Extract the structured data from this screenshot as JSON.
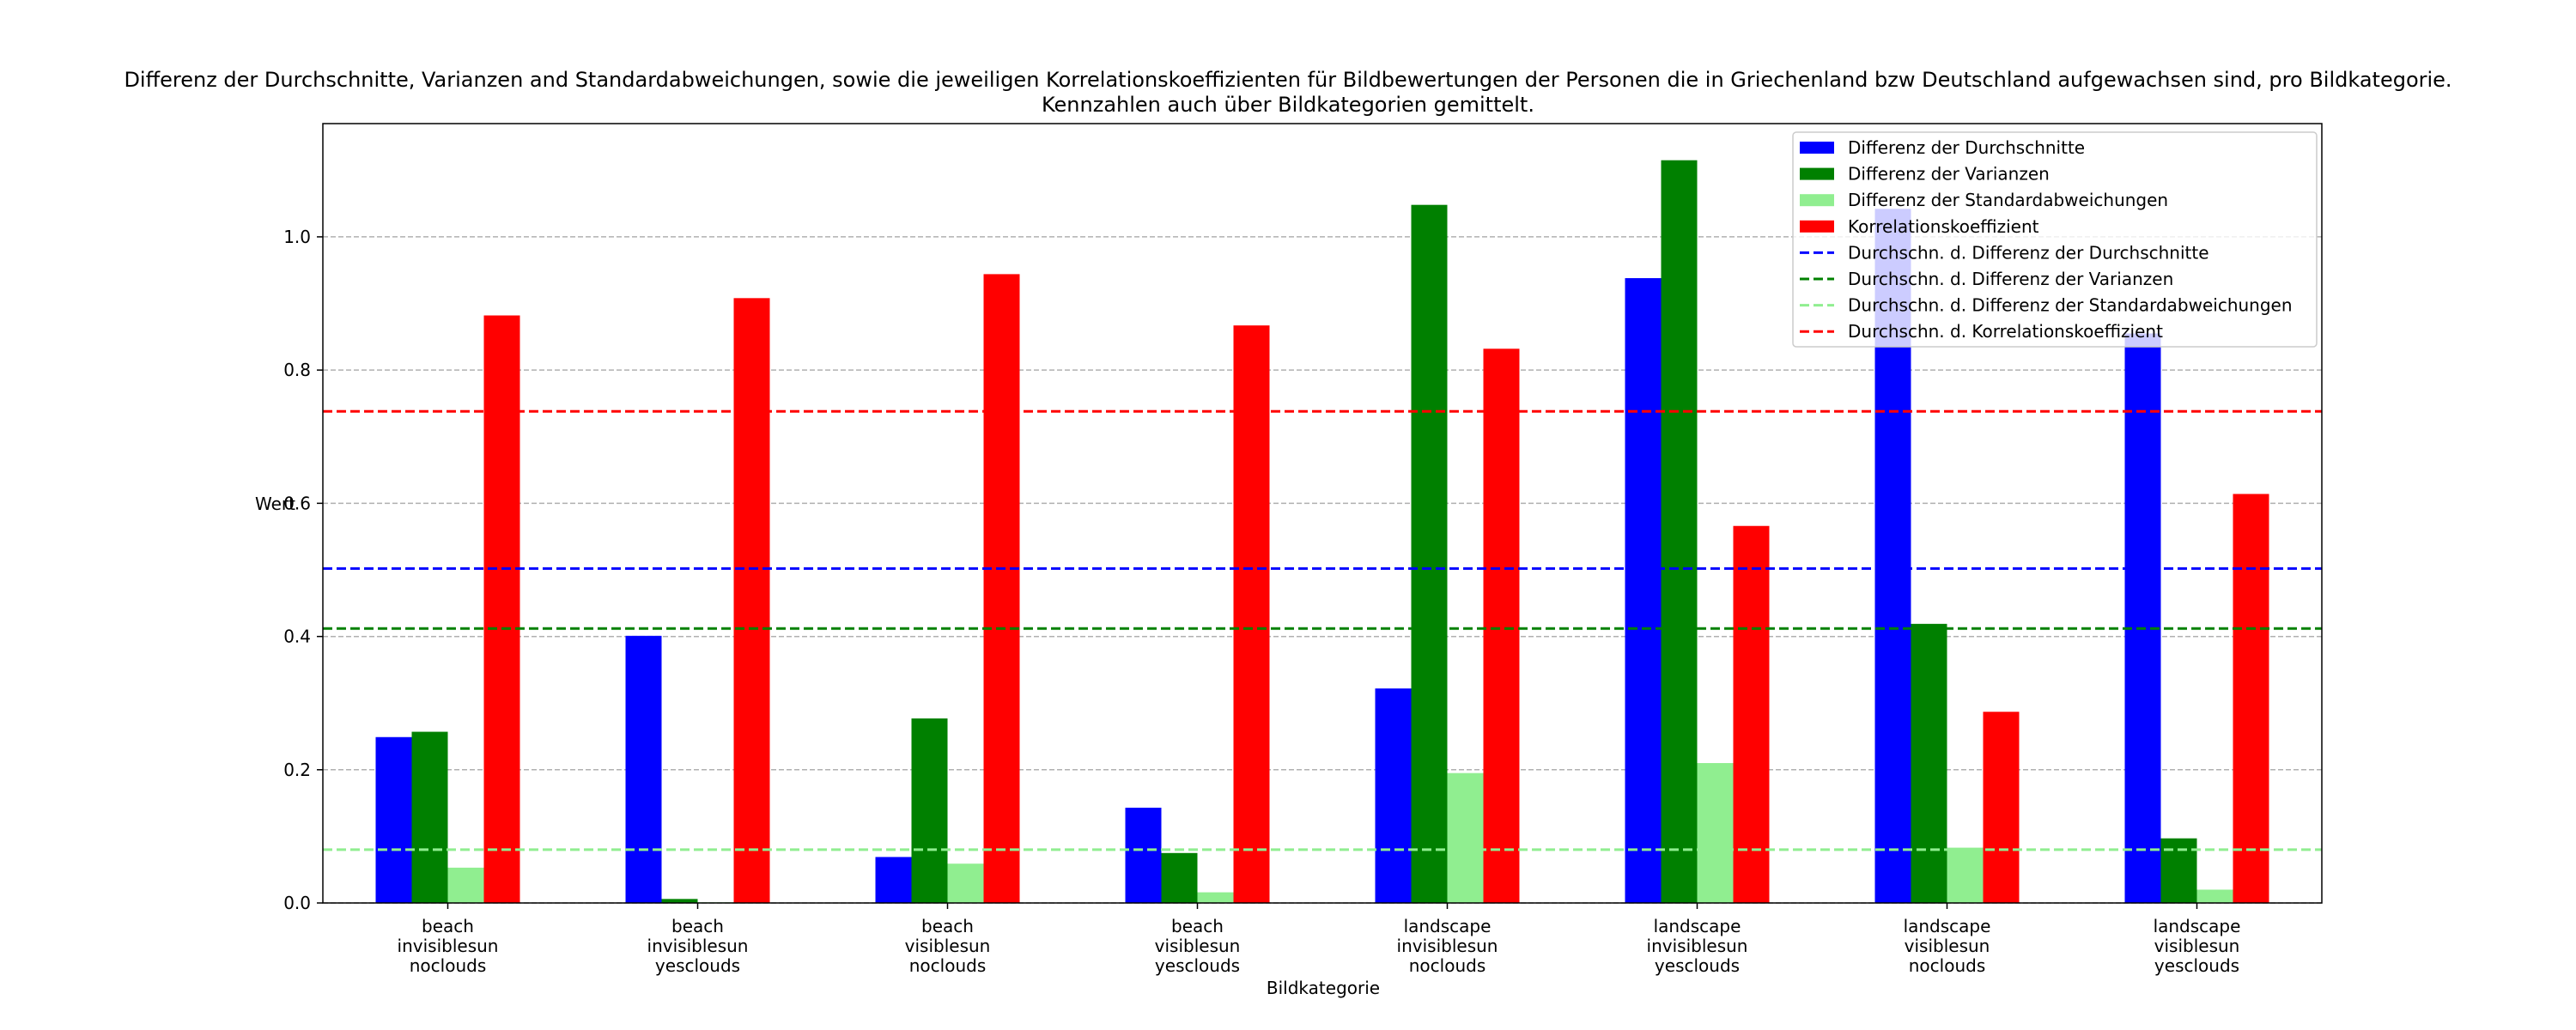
{
  "chart_data": {
    "type": "bar",
    "title_lines": [
      "Differenz der Durchschnitte, Varianzen and Standardabweichungen, sowie die jeweiligen Korrelationskoeffizienten für Bildbewertungen der Personen die in Griechenland bzw Deutschland aufgewachsen sind, pro Bildkategorie.",
      "Kennzahlen auch über Bildkategorien gemittelt."
    ],
    "xlabel": "Bildkategorie",
    "ylabel": "Wert",
    "ylim": [
      0,
      1.17
    ],
    "yticks": [
      "0.0",
      "0.2",
      "0.4",
      "0.6",
      "0.8",
      "1.0"
    ],
    "grid": true,
    "legend_position": "top-right",
    "categories": [
      [
        "beach",
        "invisiblesun",
        "noclouds"
      ],
      [
        "beach",
        "invisiblesun",
        "yesclouds"
      ],
      [
        "beach",
        "visiblesun",
        "noclouds"
      ],
      [
        "beach",
        "visiblesun",
        "yesclouds"
      ],
      [
        "landscape",
        "invisiblesun",
        "noclouds"
      ],
      [
        "landscape",
        "invisiblesun",
        "yesclouds"
      ],
      [
        "landscape",
        "visiblesun",
        "noclouds"
      ],
      [
        "landscape",
        "visiblesun",
        "yesclouds"
      ]
    ],
    "series": [
      {
        "name": "Differenz der Durchschnitte",
        "color": "#0000ff",
        "values": [
          0.249,
          0.401,
          0.069,
          0.143,
          0.322,
          0.938,
          1.042,
          0.855
        ]
      },
      {
        "name": "Differenz der Varianzen",
        "color": "#008000",
        "values": [
          0.257,
          0.006,
          0.277,
          0.075,
          1.048,
          1.115,
          0.419,
          0.097
        ]
      },
      {
        "name": "Differenz der Standardabweichungen",
        "color": "#90ee90",
        "values": [
          0.053,
          0.001,
          0.059,
          0.016,
          0.195,
          0.21,
          0.083,
          0.02
        ]
      },
      {
        "name": "Korrelationskoeffizient",
        "color": "#ff0000",
        "values": [
          0.882,
          0.908,
          0.944,
          0.867,
          0.832,
          0.566,
          0.287,
          0.614
        ]
      }
    ],
    "mean_lines": [
      {
        "name": "Durchschn. d. Differenz der Durchschnitte",
        "color": "#0000ff",
        "value": 0.502
      },
      {
        "name": "Durchschn. d. Differenz der Varianzen",
        "color": "#008000",
        "value": 0.412
      },
      {
        "name": "Durchschn. d. Differenz der Standardabweichungen",
        "color": "#90ee90",
        "value": 0.08
      },
      {
        "name": "Durchschn. d. Korrelationskoeffizient",
        "color": "#ff0000",
        "value": 0.738
      }
    ]
  }
}
